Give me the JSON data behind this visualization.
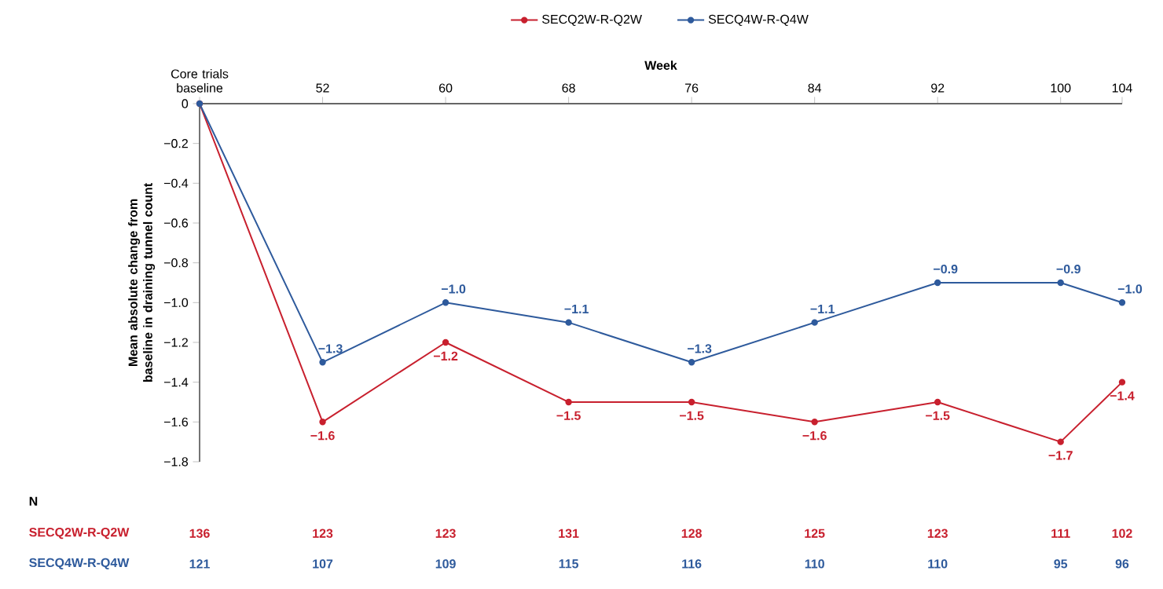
{
  "chart_data": {
    "type": "line",
    "xlabel": "Week",
    "ylabel": "Mean absolute change from baseline in draining tunnel count",
    "x": [
      44,
      52,
      60,
      68,
      76,
      84,
      92,
      100,
      104
    ],
    "xlim": [
      44,
      104
    ],
    "xticks": [
      {
        "value": 44,
        "label": "Core trials baseline"
      },
      52,
      60,
      68,
      76,
      84,
      92,
      100,
      104
    ],
    "ylim": [
      -1.8,
      0
    ],
    "yticks": [
      0,
      {
        "value": -0.2,
        "label": "−0.2"
      },
      {
        "value": -0.4,
        "label": "−0.4"
      },
      {
        "value": -0.6,
        "label": "−0.6"
      },
      {
        "value": -0.8,
        "label": "−0.8"
      },
      {
        "value": -1.0,
        "label": "−1.0"
      },
      {
        "value": -1.2,
        "label": "−1.2"
      },
      {
        "value": -1.4,
        "label": "−1.4"
      },
      {
        "value": -1.6,
        "label": "−1.6"
      },
      {
        "value": -1.8,
        "label": "−1.8"
      }
    ],
    "series": [
      {
        "name": "SECQ2W-R-Q2W",
        "color": "#c8202e",
        "values": [
          0,
          -1.6,
          -1.2,
          -1.5,
          -1.5,
          -1.6,
          -1.5,
          -1.7,
          -1.4
        ],
        "value_labels": [
          null,
          "−1.6",
          "−1.2",
          "−1.5",
          "−1.5",
          "−1.6",
          "−1.5",
          "−1.7",
          "−1.4"
        ]
      },
      {
        "name": "SECQ4W-R-Q4W",
        "color": "#2e5a9c",
        "values": [
          0,
          -1.3,
          -1.0,
          -1.1,
          -1.3,
          -1.1,
          -0.9,
          -0.9,
          -1.0
        ],
        "value_labels": [
          null,
          "−1.3",
          "−1.0",
          "−1.1",
          "−1.3",
          "−1.1",
          "−0.9",
          "−0.9",
          "−1.0"
        ]
      }
    ],
    "annotations": [
      "N",
      "136",
      "123",
      "123",
      "131",
      "128",
      "125",
      "123",
      "111",
      "102",
      "121",
      "107",
      "109",
      "115",
      "116",
      "110",
      "110",
      "95",
      "96"
    ],
    "legend": "top",
    "marker": "circle",
    "line_style": "solid",
    "grid": false
  }
}
